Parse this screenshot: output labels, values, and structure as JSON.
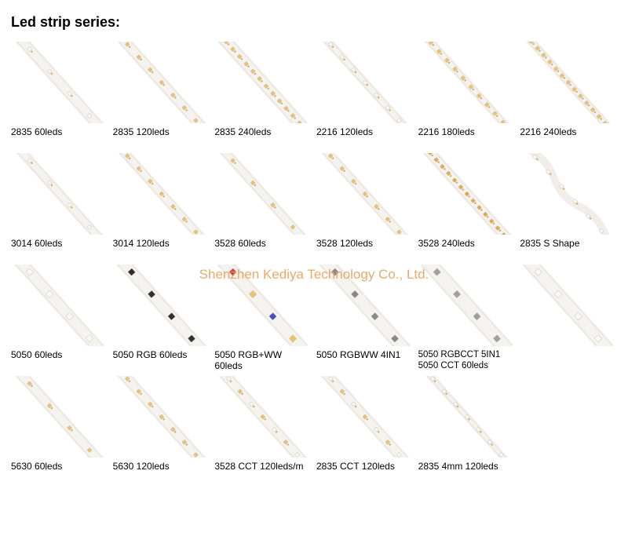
{
  "title": "Led strip series:",
  "watermark": "Shenzhen Kediya Technology Co., Ltd.",
  "strip_base_color": "#f5f3ef",
  "strip_edge_color": "#e8e4dc",
  "led_white": "#f8f8f6",
  "led_warm": "#f0c068",
  "led_amber": "#e8a840",
  "led_rgb_r": "#d04040",
  "led_rgb_g": "#40a050",
  "led_rgb_b": "#4050d0",
  "led_dark": "#404040",
  "items": [
    {
      "label": "2835  60leds",
      "density": 4,
      "led_color": "#f8f8f6",
      "width": 14
    },
    {
      "label": "2835  120leds",
      "density": 7,
      "led_color": "#f0c068",
      "width": 14
    },
    {
      "label": "2835  240leds",
      "density": 12,
      "led_color": "#f0c068",
      "width": 16
    },
    {
      "label": "2216 120leds",
      "density": 7,
      "led_color": "#f8f8f6",
      "width": 10
    },
    {
      "label": "2216 180leds",
      "density": 10,
      "led_color": "#f0c068",
      "width": 10
    },
    {
      "label": "2216 240leds",
      "density": 13,
      "led_color": "#f0c068",
      "width": 10
    },
    {
      "label": "3014  60leds",
      "density": 4,
      "led_color": "#f8f8f6",
      "width": 12
    },
    {
      "label": "3014  120leds",
      "density": 7,
      "led_color": "#f0c068",
      "width": 12
    },
    {
      "label": "3528  60leds",
      "density": 4,
      "led_color": "#f0c068",
      "width": 12
    },
    {
      "label": "3528  120leds",
      "density": 7,
      "led_color": "#f0c068",
      "width": 12
    },
    {
      "label": "3528 240leds",
      "density": 13,
      "led_color": "#e8a840",
      "width": 14
    },
    {
      "label": "2835  S Shape",
      "density": 6,
      "led_color": "#f8f8f6",
      "width": 10,
      "s_shape": true
    },
    {
      "label": "5050  60leds",
      "density": 4,
      "led_color": "#f8f8f6",
      "width": 16,
      "big": true
    },
    {
      "label": "5050 RGB 60leds",
      "density": 4,
      "led_color": "rgb",
      "width": 16,
      "big": true
    },
    {
      "label": "5050  RGB+WW 60leds",
      "density": 4,
      "led_color": "rgb",
      "width": 18,
      "big": true,
      "alt": true
    },
    {
      "label": "5050 RGBWW 4IN1",
      "density": 4,
      "led_color": "#888888",
      "width": 18,
      "big": true
    },
    {
      "label": "5050 RGBCCT 5IN1",
      "density": 4,
      "led_color": "#a0a0a0",
      "width": 20,
      "big": true,
      "extra_label": "5050 CCT 60leds"
    },
    {
      "label": "",
      "density": 4,
      "led_color": "#f8f8f6",
      "width": 18,
      "big": true,
      "hidden": false,
      "only_extra": true,
      "extra_img_density": 4
    },
    {
      "label": "5630  60leds",
      "density": 4,
      "led_color": "#f0c068",
      "width": 14
    },
    {
      "label": "5630  120leds",
      "density": 7,
      "led_color": "#f0c068",
      "width": 14
    },
    {
      "label": "3528 CCT 120leds/m",
      "density": 7,
      "led_color": "cct",
      "width": 14
    },
    {
      "label": "2835  CCT 120leds",
      "density": 7,
      "led_color": "cct",
      "width": 14
    },
    {
      "label": "2835  4mm 120leds",
      "density": 7,
      "led_color": "#f8f8f6",
      "width": 8
    }
  ]
}
